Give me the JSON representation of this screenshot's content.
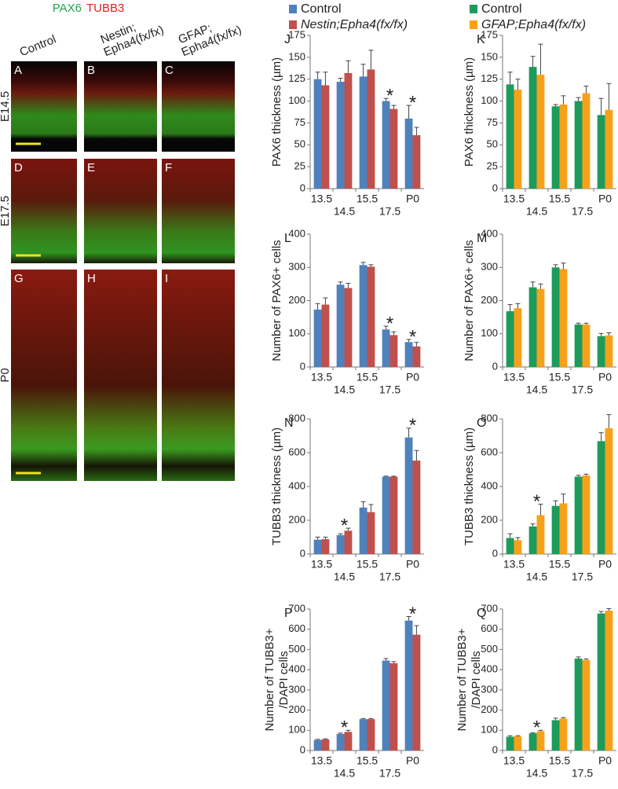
{
  "figure": {
    "stain": [
      "PAX6",
      "TUBB3"
    ],
    "columns": [
      [
        "Control"
      ],
      [
        "Nestin;",
        "Epha4(fx/fx)"
      ],
      [
        "GFAP;",
        "Epha4(fx/fx)"
      ]
    ],
    "rows": [
      "E14.5",
      "E17.5",
      "P0"
    ],
    "panels": [
      "A",
      "B",
      "C",
      "D",
      "E",
      "F",
      "G",
      "H",
      "I"
    ]
  },
  "chart_data": [
    {
      "type": "bar",
      "panel": "J",
      "ylabel": [
        "PAX6 thickness (µm)"
      ],
      "categories": [
        "13.5",
        "14.5",
        "15.5",
        "17.5",
        "P0"
      ],
      "series": [
        {
          "name": "Control",
          "color": "#4f81bd",
          "values": [
            125,
            122,
            128,
            100,
            80
          ],
          "errors": [
            8,
            4,
            14,
            3,
            15
          ]
        },
        {
          "name": "Nestin;Epha4(fx/fx)",
          "color": "#c0504d",
          "values": [
            118,
            132,
            136,
            91,
            61
          ],
          "errors": [
            15,
            14,
            22,
            4,
            9
          ]
        }
      ],
      "ylim": [
        0,
        175
      ],
      "yticks": [
        0,
        25,
        50,
        75,
        100,
        125,
        150,
        175
      ],
      "annotations": [
        {
          "text": "*",
          "x": "17.5"
        },
        {
          "text": "*",
          "x": "P0"
        }
      ]
    },
    {
      "type": "bar",
      "panel": "K",
      "ylabel": [
        "PAX6 thickness (µm)"
      ],
      "categories": [
        "13.5",
        "14.5",
        "15.5",
        "17.5",
        "P0"
      ],
      "series": [
        {
          "name": "Control",
          "color": "#1e9b5a",
          "values": [
            119,
            139,
            94,
            100,
            84
          ],
          "errors": [
            14,
            12,
            2,
            4,
            19
          ]
        },
        {
          "name": "GFAP;Epha4(fx/fx)",
          "color": "#f7a11a",
          "values": [
            113,
            130,
            96,
            109,
            90
          ],
          "errors": [
            12,
            35,
            10,
            8,
            30
          ]
        }
      ],
      "ylim": [
        0,
        175
      ],
      "yticks": [
        0,
        25,
        50,
        75,
        100,
        125,
        150,
        175
      ],
      "annotations": []
    },
    {
      "type": "bar",
      "panel": "L",
      "ylabel": [
        "Number of PAX6+ cells"
      ],
      "categories": [
        "13.5",
        "14.5",
        "15.5",
        "17.5",
        "P0"
      ],
      "series": [
        {
          "color": "#4f81bd",
          "values": [
            173,
            248,
            307,
            113,
            75
          ],
          "errors": [
            18,
            8,
            8,
            10,
            8
          ]
        },
        {
          "color": "#c0504d",
          "values": [
            188,
            238,
            302,
            96,
            62
          ],
          "errors": [
            20,
            14,
            6,
            10,
            12
          ]
        }
      ],
      "ylim": [
        0,
        400
      ],
      "yticks": [
        0,
        100,
        200,
        300,
        400
      ],
      "annotations": [
        {
          "text": "*",
          "x": "17.5"
        },
        {
          "text": "*",
          "x": "P0"
        }
      ]
    },
    {
      "type": "bar",
      "panel": "M",
      "ylabel": [
        "Number of PAX6+ cells"
      ],
      "categories": [
        "13.5",
        "14.5",
        "15.5",
        "17.5",
        "P0"
      ],
      "series": [
        {
          "color": "#1e9b5a",
          "values": [
            168,
            240,
            300,
            128,
            93
          ],
          "errors": [
            20,
            16,
            8,
            4,
            8
          ]
        },
        {
          "color": "#f7a11a",
          "values": [
            177,
            235,
            295,
            128,
            95
          ],
          "errors": [
            14,
            15,
            18,
            4,
            8
          ]
        }
      ],
      "ylim": [
        0,
        400
      ],
      "yticks": [
        0,
        100,
        200,
        300,
        400
      ],
      "annotations": []
    },
    {
      "type": "bar",
      "panel": "N",
      "ylabel": [
        "TUBB3 thickness (µm)"
      ],
      "categories": [
        "13.5",
        "14.5",
        "15.5",
        "17.5",
        "P0"
      ],
      "series": [
        {
          "color": "#4f81bd",
          "values": [
            85,
            112,
            275,
            458,
            690
          ],
          "errors": [
            15,
            8,
            35,
            3,
            55
          ]
        },
        {
          "color": "#c0504d",
          "values": [
            88,
            138,
            248,
            458,
            553
          ],
          "errors": [
            12,
            15,
            45,
            3,
            60
          ]
        }
      ],
      "ylim": [
        0,
        800
      ],
      "yticks": [
        0,
        200,
        400,
        600,
        800
      ],
      "annotations": [
        {
          "text": "*",
          "x": "14.5"
        },
        {
          "text": "*",
          "x": "P0"
        }
      ]
    },
    {
      "type": "bar",
      "panel": "O",
      "ylabel": [
        "TUBB3 thickness (µm)"
      ],
      "categories": [
        "13.5",
        "14.5",
        "15.5",
        "17.5",
        "P0"
      ],
      "series": [
        {
          "color": "#1e9b5a",
          "values": [
            95,
            163,
            285,
            458,
            668
          ],
          "errors": [
            25,
            15,
            30,
            8,
            50
          ]
        },
        {
          "color": "#f7a11a",
          "values": [
            82,
            230,
            300,
            465,
            745
          ],
          "errors": [
            15,
            65,
            55,
            8,
            80
          ]
        }
      ],
      "ylim": [
        0,
        800
      ],
      "yticks": [
        0,
        200,
        400,
        600,
        800
      ],
      "annotations": [
        {
          "text": "*",
          "x": "14.5"
        }
      ]
    },
    {
      "type": "bar",
      "panel": "P",
      "ylabel": [
        "Number of TUBB3+",
        "/DAPI cells"
      ],
      "categories": [
        "13.5",
        "14.5",
        "15.5",
        "17.5",
        "P0"
      ],
      "series": [
        {
          "color": "#4f81bd",
          "values": [
            52,
            82,
            155,
            445,
            643
          ],
          "errors": [
            3,
            4,
            3,
            10,
            20
          ]
        },
        {
          "color": "#c0504d",
          "values": [
            55,
            92,
            155,
            432,
            573
          ],
          "errors": [
            3,
            8,
            3,
            8,
            45
          ]
        }
      ],
      "ylim": [
        0,
        700
      ],
      "yticks": [
        0,
        100,
        200,
        300,
        400,
        500,
        600,
        700
      ],
      "annotations": [
        {
          "text": "*",
          "x": "14.5"
        },
        {
          "text": "*",
          "x": "P0"
        }
      ]
    },
    {
      "type": "bar",
      "panel": "Q",
      "ylabel": [
        "Number of TUBB3+",
        "/DAPI cells"
      ],
      "categories": [
        "13.5",
        "14.5",
        "15.5",
        "17.5",
        "P0"
      ],
      "series": [
        {
          "color": "#1e9b5a",
          "values": [
            68,
            85,
            150,
            455,
            678
          ],
          "errors": [
            5,
            3,
            10,
            8,
            10
          ]
        },
        {
          "color": "#f7a11a",
          "values": [
            70,
            95,
            158,
            448,
            692
          ],
          "errors": [
            3,
            5,
            5,
            5,
            10
          ]
        }
      ],
      "ylim": [
        0,
        700
      ],
      "yticks": [
        0,
        100,
        200,
        300,
        400,
        500,
        600,
        700
      ],
      "annotations": [
        {
          "text": "*",
          "x": "14.5"
        }
      ]
    }
  ]
}
